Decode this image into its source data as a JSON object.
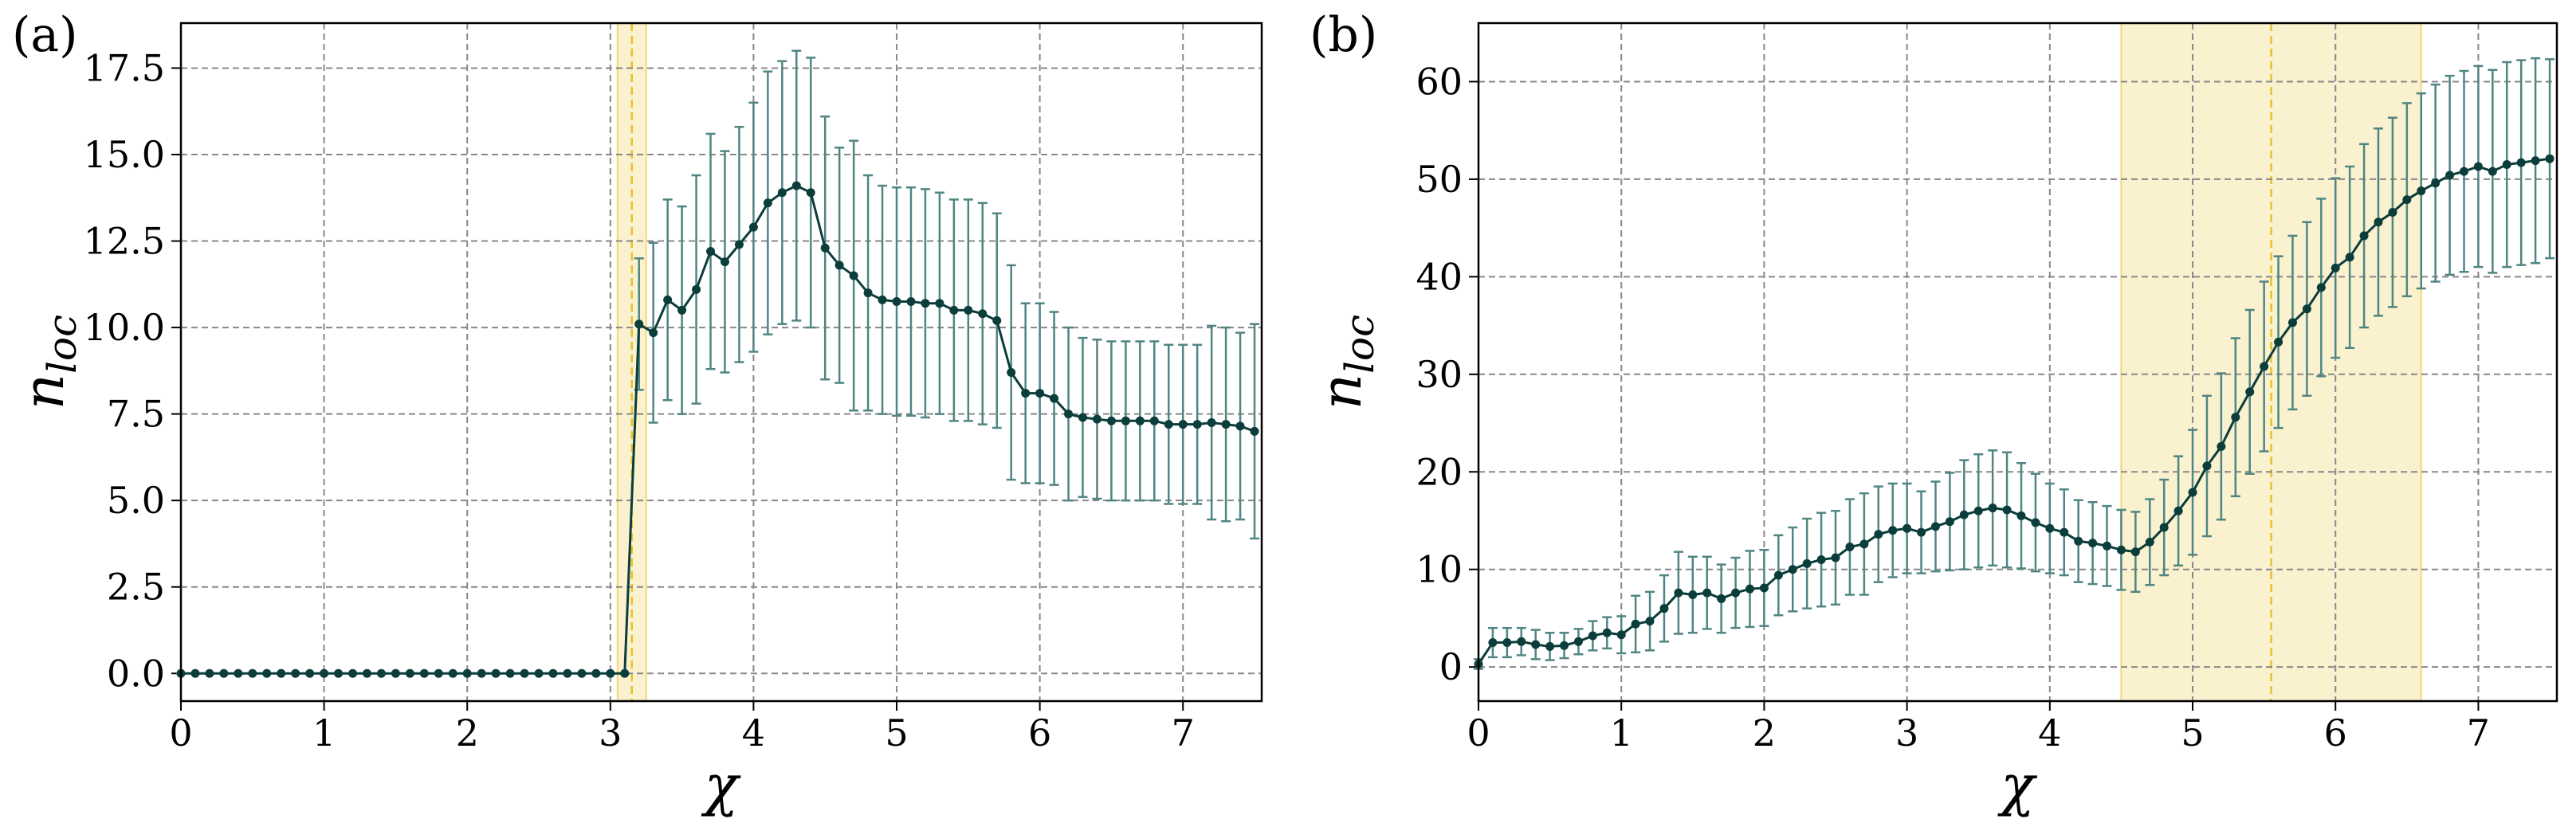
{
  "chart_data": [
    {
      "type": "line",
      "panel_label": "(a)",
      "xlabel": "χ",
      "ylabel": "n",
      "ylabel_sub": "loc",
      "color": "#0b3d3a",
      "error_color": "#4f8582",
      "band": [
        3.05,
        3.25
      ],
      "band_center": 3.15,
      "band_color": "#f2d875",
      "grid": true,
      "xlim": [
        0,
        7.55
      ],
      "ylim": [
        -0.8,
        18.8
      ],
      "xticks": [
        0,
        1,
        2,
        3,
        4,
        5,
        6,
        7
      ],
      "yticks": [
        {
          "value": 0,
          "label": "0.0"
        },
        2.5,
        {
          "value": 5,
          "label": "5.0"
        },
        7.5,
        {
          "value": 10,
          "label": "10.0"
        },
        12.5,
        {
          "value": 15,
          "label": "15.0"
        },
        17.5
      ],
      "x": [
        0,
        0.1,
        0.2,
        0.3,
        0.4,
        0.5,
        0.6,
        0.7,
        0.8,
        0.9,
        1,
        1.1,
        1.2,
        1.3,
        1.4,
        1.5,
        1.6,
        1.7,
        1.8,
        1.9,
        2,
        2.1,
        2.2,
        2.3,
        2.4,
        2.5,
        2.6,
        2.7,
        2.8,
        2.9,
        3,
        3.1,
        3.2,
        3.3,
        3.4,
        3.5,
        3.6,
        3.7,
        3.8,
        3.9,
        4,
        4.1,
        4.2,
        4.3,
        4.4,
        4.5,
        4.6,
        4.7,
        4.8,
        4.9,
        5,
        5.1,
        5.2,
        5.3,
        5.4,
        5.5,
        5.6,
        5.7,
        5.8,
        5.9,
        6,
        6.1,
        6.2,
        6.3,
        6.4,
        6.5,
        6.6,
        6.7,
        6.8,
        6.9,
        7,
        7.1,
        7.2,
        7.3,
        7.4,
        7.5
      ],
      "values": [
        0,
        0,
        0,
        0,
        0,
        0,
        0,
        0,
        0,
        0,
        0,
        0,
        0,
        0,
        0,
        0,
        0,
        0,
        0,
        0,
        0,
        0,
        0,
        0,
        0,
        0,
        0,
        0,
        0,
        0,
        0,
        0,
        10.1,
        9.85,
        10.8,
        10.5,
        11.1,
        12.2,
        11.9,
        12.4,
        12.9,
        13.6,
        13.9,
        14.1,
        13.9,
        12.3,
        11.8,
        11.5,
        11.0,
        10.8,
        10.75,
        10.75,
        10.7,
        10.7,
        10.5,
        10.5,
        10.4,
        10.2,
        8.7,
        8.1,
        8.1,
        7.95,
        7.5,
        7.4,
        7.35,
        7.3,
        7.3,
        7.3,
        7.3,
        7.2,
        7.2,
        7.2,
        7.25,
        7.2,
        7.15,
        7.0
      ],
      "errors": [
        0,
        0,
        0,
        0,
        0,
        0,
        0,
        0,
        0,
        0,
        0,
        0,
        0,
        0,
        0,
        0,
        0,
        0,
        0,
        0,
        0,
        0,
        0,
        0,
        0,
        0,
        0,
        0,
        0,
        0,
        0,
        0,
        1.9,
        2.6,
        2.9,
        3.0,
        3.3,
        3.4,
        3.2,
        3.4,
        3.6,
        3.8,
        3.8,
        3.9,
        3.9,
        3.8,
        3.4,
        3.9,
        3.4,
        3.3,
        3.3,
        3.3,
        3.3,
        3.2,
        3.2,
        3.2,
        3.2,
        3.1,
        3.1,
        2.6,
        2.6,
        2.5,
        2.5,
        2.3,
        2.3,
        2.3,
        2.3,
        2.3,
        2.3,
        2.3,
        2.3,
        2.3,
        2.8,
        2.8,
        2.7,
        3.1
      ]
    },
    {
      "type": "line",
      "panel_label": "(b)",
      "xlabel": "χ",
      "ylabel": "n",
      "ylabel_sub": "loc",
      "color": "#0b3d3a",
      "error_color": "#4f8582",
      "band": [
        4.5,
        6.6
      ],
      "band_center": 5.55,
      "band_color": "#f2d875",
      "grid": true,
      "xlim": [
        0,
        7.55
      ],
      "ylim": [
        -3.5,
        66
      ],
      "xticks": [
        0,
        1,
        2,
        3,
        4,
        5,
        6,
        7
      ],
      "yticks": [
        0,
        10,
        20,
        30,
        40,
        50,
        60
      ],
      "x": [
        0,
        0.1,
        0.2,
        0.3,
        0.4,
        0.5,
        0.6,
        0.7,
        0.8,
        0.9,
        1,
        1.1,
        1.2,
        1.3,
        1.4,
        1.5,
        1.6,
        1.7,
        1.8,
        1.9,
        2,
        2.1,
        2.2,
        2.3,
        2.4,
        2.5,
        2.6,
        2.7,
        2.8,
        2.9,
        3,
        3.1,
        3.2,
        3.3,
        3.4,
        3.5,
        3.6,
        3.7,
        3.8,
        3.9,
        4,
        4.1,
        4.2,
        4.3,
        4.4,
        4.5,
        4.6,
        4.7,
        4.8,
        4.9,
        5,
        5.1,
        5.2,
        5.3,
        5.4,
        5.5,
        5.6,
        5.7,
        5.8,
        5.9,
        6,
        6.1,
        6.2,
        6.3,
        6.4,
        6.5,
        6.6,
        6.7,
        6.8,
        6.9,
        7,
        7.1,
        7.2,
        7.3,
        7.4,
        7.5
      ],
      "values": [
        0.3,
        2.5,
        2.5,
        2.6,
        2.3,
        2.1,
        2.2,
        2.6,
        3.2,
        3.5,
        3.3,
        4.4,
        4.7,
        6.0,
        7.6,
        7.4,
        7.6,
        7.0,
        7.6,
        8.0,
        8.1,
        9.4,
        10.0,
        10.6,
        11.0,
        11.2,
        12.3,
        12.6,
        13.6,
        14.0,
        14.2,
        13.8,
        14.4,
        14.9,
        15.6,
        16.0,
        16.3,
        16.1,
        15.5,
        14.8,
        14.2,
        13.8,
        12.9,
        12.7,
        12.4,
        12.0,
        11.8,
        12.8,
        14.3,
        16.0,
        17.9,
        20.6,
        22.6,
        25.6,
        28.2,
        30.8,
        33.3,
        35.3,
        36.7,
        38.9,
        40.9,
        42.0,
        44.2,
        45.6,
        46.6,
        47.9,
        48.8,
        49.6,
        50.4,
        50.8,
        51.3,
        50.8,
        51.5,
        51.7,
        51.9,
        52.1
      ],
      "errors": [
        0.5,
        1.5,
        1.5,
        1.4,
        1.5,
        1.4,
        1.3,
        1.3,
        1.5,
        1.6,
        1.9,
        2.9,
        3.0,
        3.4,
        4.2,
        3.9,
        3.7,
        3.5,
        3.6,
        3.9,
        3.9,
        4.1,
        4.3,
        4.6,
        4.8,
        4.8,
        4.9,
        5.2,
        4.9,
        4.8,
        4.6,
        4.2,
        4.6,
        5.0,
        5.6,
        5.8,
        5.9,
        5.9,
        5.4,
        5.0,
        4.6,
        4.4,
        4.2,
        4.2,
        4.1,
        4.1,
        4.1,
        4.4,
        4.9,
        5.6,
        6.4,
        7.2,
        7.5,
        8.1,
        8.4,
        8.7,
        8.8,
        8.9,
        8.9,
        9.1,
        9.2,
        9.3,
        9.4,
        9.6,
        9.7,
        9.9,
        10.0,
        10.1,
        10.2,
        10.3,
        10.3,
        10.4,
        10.5,
        10.5,
        10.5,
        10.2
      ]
    }
  ]
}
